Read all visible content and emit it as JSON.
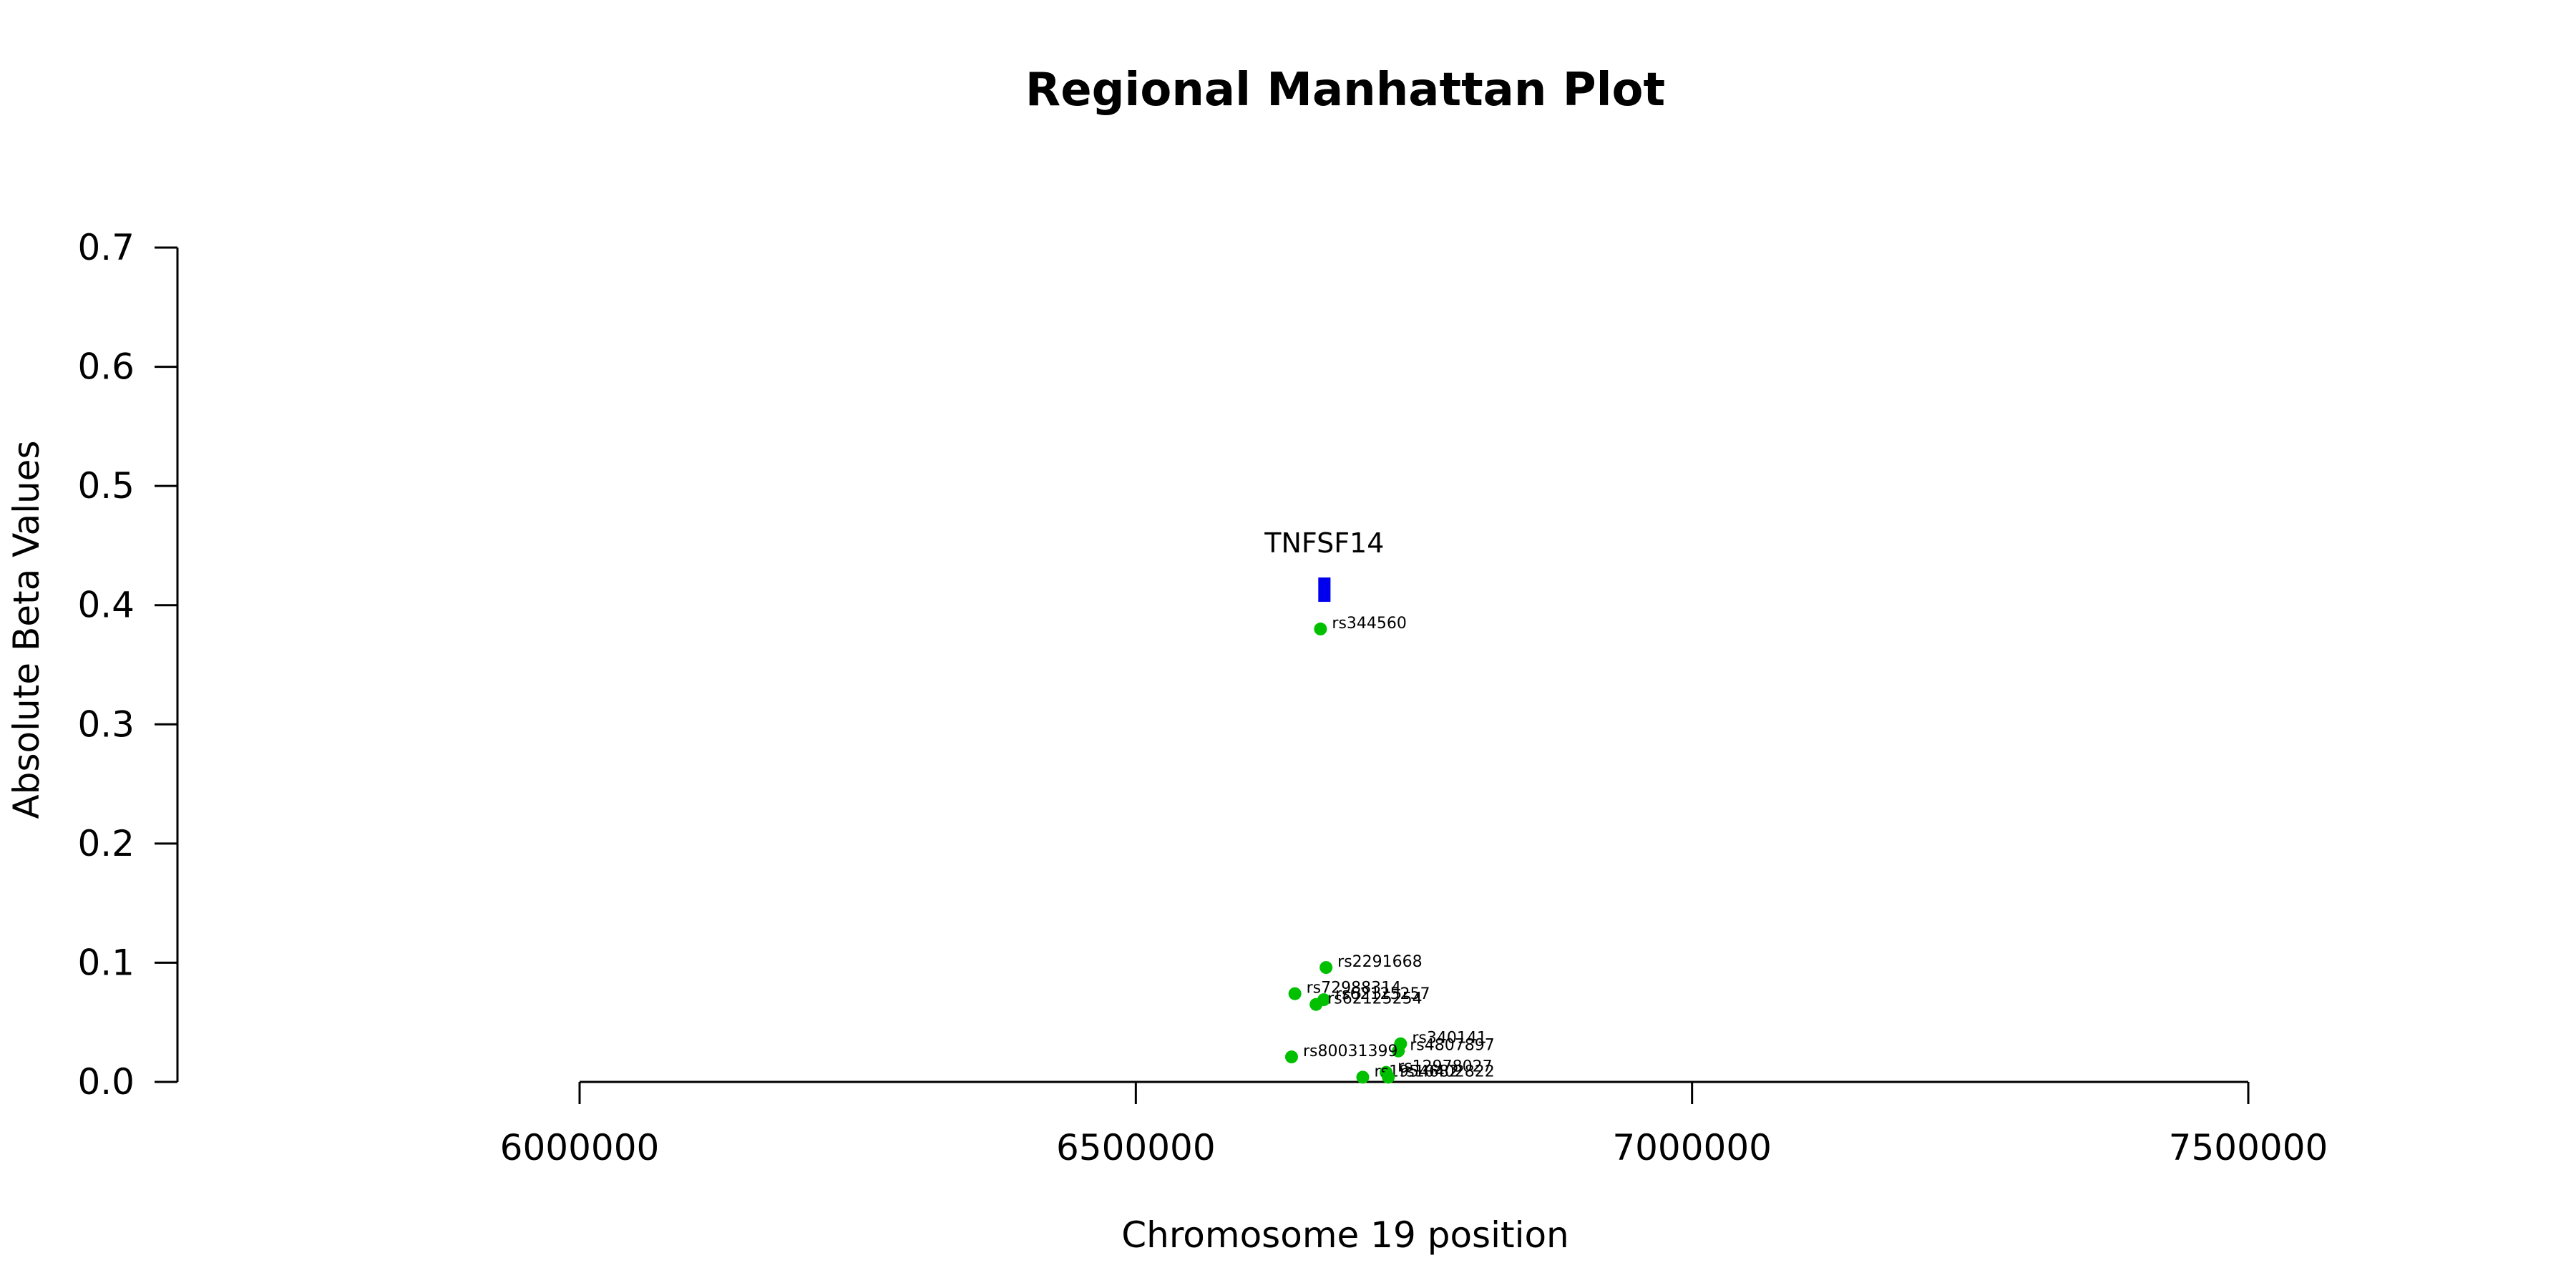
{
  "chart_data": {
    "type": "scatter",
    "title": "Regional Manhattan Plot",
    "xlabel": "Chromosome 19 position",
    "ylabel": "Absolute Beta Values",
    "xlim": [
      6000000,
      7500000
    ],
    "ylim": [
      0,
      0.7
    ],
    "x_ticks": [
      "6000000",
      "6500000",
      "7000000",
      "7500000"
    ],
    "y_ticks": [
      "0.0",
      "0.1",
      "0.2",
      "0.3",
      "0.4",
      "0.5",
      "0.6",
      "0.7"
    ],
    "grid": false,
    "colors": {
      "snp": "#00c000",
      "gene": "#0000ee"
    },
    "gene": {
      "name": "TNFSF14",
      "start": 6664000,
      "end": 6675000,
      "y": 0.413
    },
    "points": [
      {
        "label": "rs344560",
        "x": 6666000,
        "y": 0.38
      },
      {
        "label": "rs2291668",
        "x": 6671000,
        "y": 0.096
      },
      {
        "label": "rs72988314",
        "x": 6643000,
        "y": 0.074
      },
      {
        "label": "rs62125257",
        "x": 6669000,
        "y": 0.069
      },
      {
        "label": "rs62125254",
        "x": 6662000,
        "y": 0.065
      },
      {
        "label": "rs340141",
        "x": 6738000,
        "y": 0.032
      },
      {
        "label": "rs4807897",
        "x": 6736000,
        "y": 0.026
      },
      {
        "label": "rs80031399",
        "x": 6640000,
        "y": 0.021
      },
      {
        "label": "rs12978027",
        "x": 6725000,
        "y": 0.008
      },
      {
        "label": "rs1954682",
        "x": 6704000,
        "y": 0.004
      },
      {
        "label": "rs10402822",
        "x": 6727000,
        "y": 0.004
      }
    ]
  }
}
